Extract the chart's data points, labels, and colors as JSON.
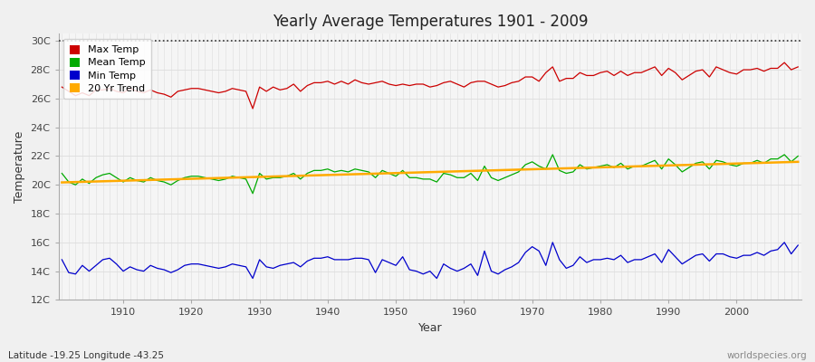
{
  "title": "Yearly Average Temperatures 1901 - 2009",
  "xlabel": "Year",
  "ylabel": "Temperature",
  "footnote_left": "Latitude -19.25 Longitude -43.25",
  "footnote_right": "worldspecies.org",
  "years": [
    1901,
    1902,
    1903,
    1904,
    1905,
    1906,
    1907,
    1908,
    1909,
    1910,
    1911,
    1912,
    1913,
    1914,
    1915,
    1916,
    1917,
    1918,
    1919,
    1920,
    1921,
    1922,
    1923,
    1924,
    1925,
    1926,
    1927,
    1928,
    1929,
    1930,
    1931,
    1932,
    1933,
    1934,
    1935,
    1936,
    1937,
    1938,
    1939,
    1940,
    1941,
    1942,
    1943,
    1944,
    1945,
    1946,
    1947,
    1948,
    1949,
    1950,
    1951,
    1952,
    1953,
    1954,
    1955,
    1956,
    1957,
    1958,
    1959,
    1960,
    1961,
    1962,
    1963,
    1964,
    1965,
    1966,
    1967,
    1968,
    1969,
    1970,
    1971,
    1972,
    1973,
    1974,
    1975,
    1976,
    1977,
    1978,
    1979,
    1980,
    1981,
    1982,
    1983,
    1984,
    1985,
    1986,
    1987,
    1988,
    1989,
    1990,
    1991,
    1992,
    1993,
    1994,
    1995,
    1996,
    1997,
    1998,
    1999,
    2000,
    2001,
    2002,
    2003,
    2004,
    2005,
    2006,
    2007,
    2008,
    2009
  ],
  "max_temp": [
    26.8,
    26.5,
    26.2,
    26.4,
    26.2,
    26.6,
    26.6,
    26.7,
    26.5,
    26.4,
    26.7,
    26.5,
    26.4,
    26.6,
    26.4,
    26.3,
    26.1,
    26.5,
    26.6,
    26.7,
    26.7,
    26.6,
    26.5,
    26.4,
    26.5,
    26.7,
    26.6,
    26.5,
    25.3,
    26.8,
    26.5,
    26.8,
    26.6,
    26.7,
    27.0,
    26.5,
    26.9,
    27.1,
    27.1,
    27.2,
    27.0,
    27.2,
    27.0,
    27.3,
    27.1,
    27.0,
    27.1,
    27.2,
    27.0,
    26.9,
    27.0,
    26.9,
    27.0,
    27.0,
    26.8,
    26.9,
    27.1,
    27.2,
    27.0,
    26.8,
    27.1,
    27.2,
    27.2,
    27.0,
    26.8,
    26.9,
    27.1,
    27.2,
    27.5,
    27.5,
    27.2,
    27.8,
    28.2,
    27.2,
    27.4,
    27.4,
    27.8,
    27.6,
    27.6,
    27.8,
    27.9,
    27.6,
    27.9,
    27.6,
    27.8,
    27.8,
    28.0,
    28.2,
    27.6,
    28.1,
    27.8,
    27.3,
    27.6,
    27.9,
    28.0,
    27.5,
    28.2,
    28.0,
    27.8,
    27.7,
    28.0,
    28.0,
    28.1,
    27.9,
    28.1,
    28.1,
    28.5,
    28.0,
    28.2
  ],
  "mean_temp": [
    20.8,
    20.2,
    20.0,
    20.4,
    20.1,
    20.5,
    20.7,
    20.8,
    20.5,
    20.2,
    20.5,
    20.3,
    20.2,
    20.5,
    20.3,
    20.2,
    20.0,
    20.3,
    20.5,
    20.6,
    20.6,
    20.5,
    20.4,
    20.3,
    20.4,
    20.6,
    20.5,
    20.4,
    19.4,
    20.8,
    20.4,
    20.5,
    20.5,
    20.6,
    20.8,
    20.4,
    20.8,
    21.0,
    21.0,
    21.1,
    20.9,
    21.0,
    20.9,
    21.1,
    21.0,
    20.9,
    20.5,
    21.0,
    20.8,
    20.6,
    21.0,
    20.5,
    20.5,
    20.4,
    20.4,
    20.2,
    20.8,
    20.7,
    20.5,
    20.5,
    20.8,
    20.3,
    21.3,
    20.5,
    20.3,
    20.5,
    20.7,
    20.9,
    21.4,
    21.6,
    21.3,
    21.1,
    22.1,
    21.0,
    20.8,
    20.9,
    21.4,
    21.1,
    21.2,
    21.3,
    21.4,
    21.2,
    21.5,
    21.1,
    21.3,
    21.3,
    21.5,
    21.7,
    21.1,
    21.8,
    21.4,
    20.9,
    21.2,
    21.5,
    21.6,
    21.1,
    21.7,
    21.6,
    21.4,
    21.3,
    21.5,
    21.5,
    21.7,
    21.5,
    21.8,
    21.8,
    22.1,
    21.6,
    22.0
  ],
  "min_temp": [
    14.8,
    13.9,
    13.8,
    14.4,
    14.0,
    14.4,
    14.8,
    14.9,
    14.5,
    14.0,
    14.3,
    14.1,
    14.0,
    14.4,
    14.2,
    14.1,
    13.9,
    14.1,
    14.4,
    14.5,
    14.5,
    14.4,
    14.3,
    14.2,
    14.3,
    14.5,
    14.4,
    14.3,
    13.5,
    14.8,
    14.3,
    14.2,
    14.4,
    14.5,
    14.6,
    14.3,
    14.7,
    14.9,
    14.9,
    15.0,
    14.8,
    14.8,
    14.8,
    14.9,
    14.9,
    14.8,
    13.9,
    14.8,
    14.6,
    14.4,
    15.0,
    14.1,
    14.0,
    13.8,
    14.0,
    13.5,
    14.5,
    14.2,
    14.0,
    14.2,
    14.5,
    13.7,
    15.4,
    14.0,
    13.8,
    14.1,
    14.3,
    14.6,
    15.3,
    15.7,
    15.4,
    14.4,
    16.0,
    14.8,
    14.2,
    14.4,
    15.0,
    14.6,
    14.8,
    14.8,
    14.9,
    14.8,
    15.1,
    14.6,
    14.8,
    14.8,
    15.0,
    15.2,
    14.6,
    15.5,
    15.0,
    14.5,
    14.8,
    15.1,
    15.2,
    14.7,
    15.2,
    15.2,
    15.0,
    14.9,
    15.1,
    15.1,
    15.3,
    15.1,
    15.4,
    15.5,
    16.0,
    15.2,
    15.8
  ],
  "ylim": [
    12,
    30.5
  ],
  "yticks": [
    12,
    14,
    16,
    18,
    20,
    22,
    24,
    26,
    28,
    30
  ],
  "ytick_labels": [
    "12C",
    "14C",
    "16C",
    "18C",
    "20C",
    "22C",
    "24C",
    "26C",
    "28C",
    "30C"
  ],
  "bg_color": "#f0f0f0",
  "plot_bg_color": "#f5f5f5",
  "grid_color": "#dddddd",
  "max_color": "#cc0000",
  "mean_color": "#00aa00",
  "min_color": "#0000cc",
  "trend_color": "#ffaa00",
  "dotted_line_y": 30,
  "dotted_line_color": "#333333"
}
